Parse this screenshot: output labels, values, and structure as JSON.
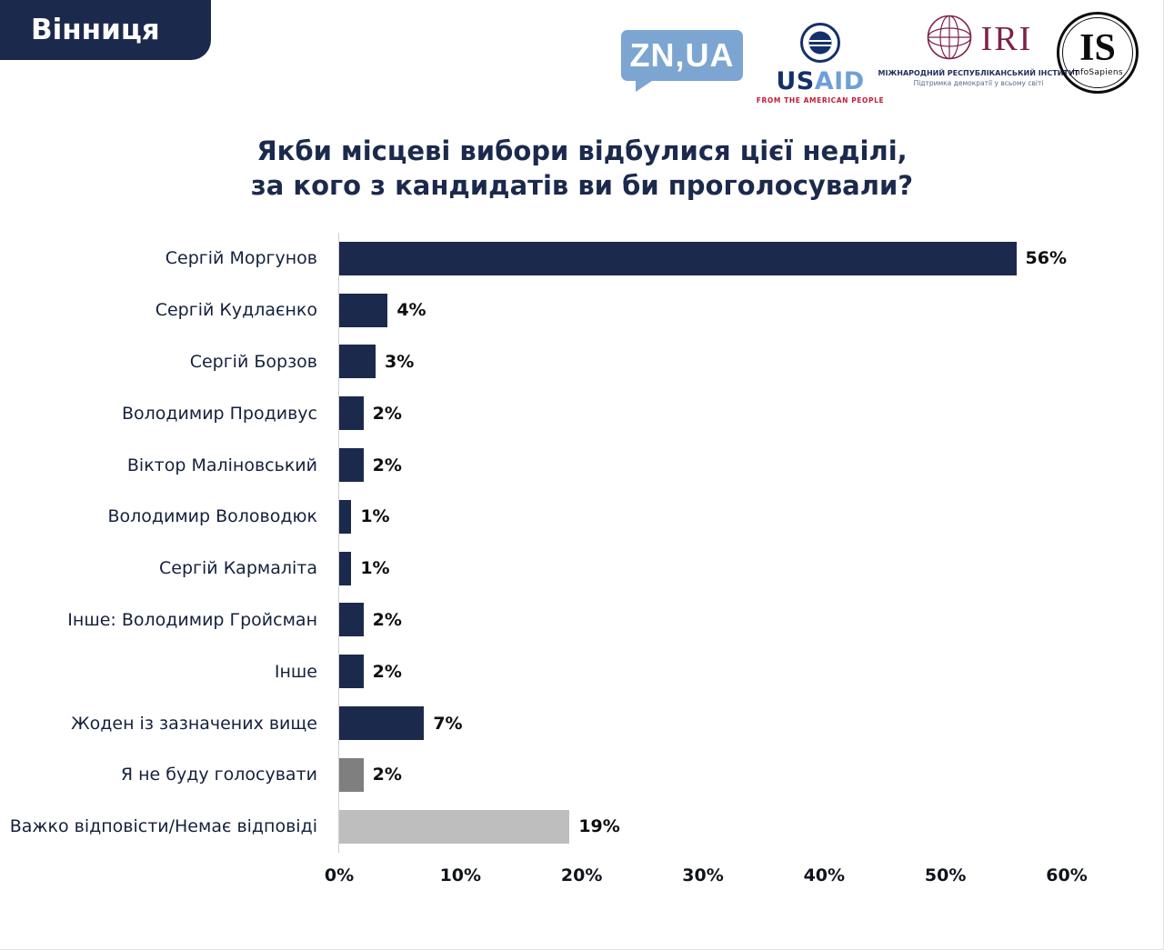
{
  "page": {
    "region_badge": "Вінниця"
  },
  "logos": {
    "znua": {
      "label": "ZN,UA"
    },
    "usaid": {
      "us": "US",
      "aid": "AID",
      "tagline": "FROM THE AMERICAN PEOPLE"
    },
    "iri": {
      "abbr": "IRI",
      "line1": "МІЖНАРОДНИЙ РЕСПУБЛІКАНСЬКИЙ ІНСТИТУТ",
      "line2": "Підтримка демократії у всьому світі"
    },
    "infosapiens": {
      "abbr": "IS",
      "name": "InfoSapiens"
    }
  },
  "chart_data": {
    "type": "bar",
    "orientation": "horizontal",
    "title": "Якби місцеві вибори відбулися цієї неділі, за кого з кандидатів ви би проголосували?",
    "title_lines": [
      "Якби місцеві вибори відбулися цієї неділі,",
      "за кого з кандидатів ви би проголосували?"
    ],
    "categories": [
      "Сергій Моргунов",
      "Сергій Кудлаєнко",
      "Сергій Борзов",
      "Володимир Продивус",
      "Віктор Маліновський",
      "Володимир Воловодюк",
      "Сергій Кармаліта",
      "Інше: Володимир Гройсман",
      "Інше",
      "Жоден із зазначених вище",
      "Я не буду голосувати",
      "Важко відповісти/Немає відповіді"
    ],
    "values": [
      56,
      4,
      3,
      2,
      2,
      1,
      1,
      2,
      2,
      7,
      2,
      19
    ],
    "value_labels": [
      "56%",
      "4%",
      "3%",
      "2%",
      "2%",
      "1%",
      "1%",
      "2%",
      "2%",
      "7%",
      "2%",
      "19%"
    ],
    "bar_colors": [
      "#1b2a4c",
      "#1b2a4c",
      "#1b2a4c",
      "#1b2a4c",
      "#1b2a4c",
      "#1b2a4c",
      "#1b2a4c",
      "#1b2a4c",
      "#1b2a4c",
      "#1b2a4c",
      "#7f7f7f",
      "#bebebe"
    ],
    "xlim": [
      0,
      60
    ],
    "x_ticks": [
      "0%",
      "10%",
      "20%",
      "30%",
      "40%",
      "50%",
      "60%"
    ],
    "grid": false,
    "legend": false,
    "colors": {
      "navy": "#1b2a4c",
      "dark_gray": "#7f7f7f",
      "light_gray": "#bebebe"
    }
  }
}
